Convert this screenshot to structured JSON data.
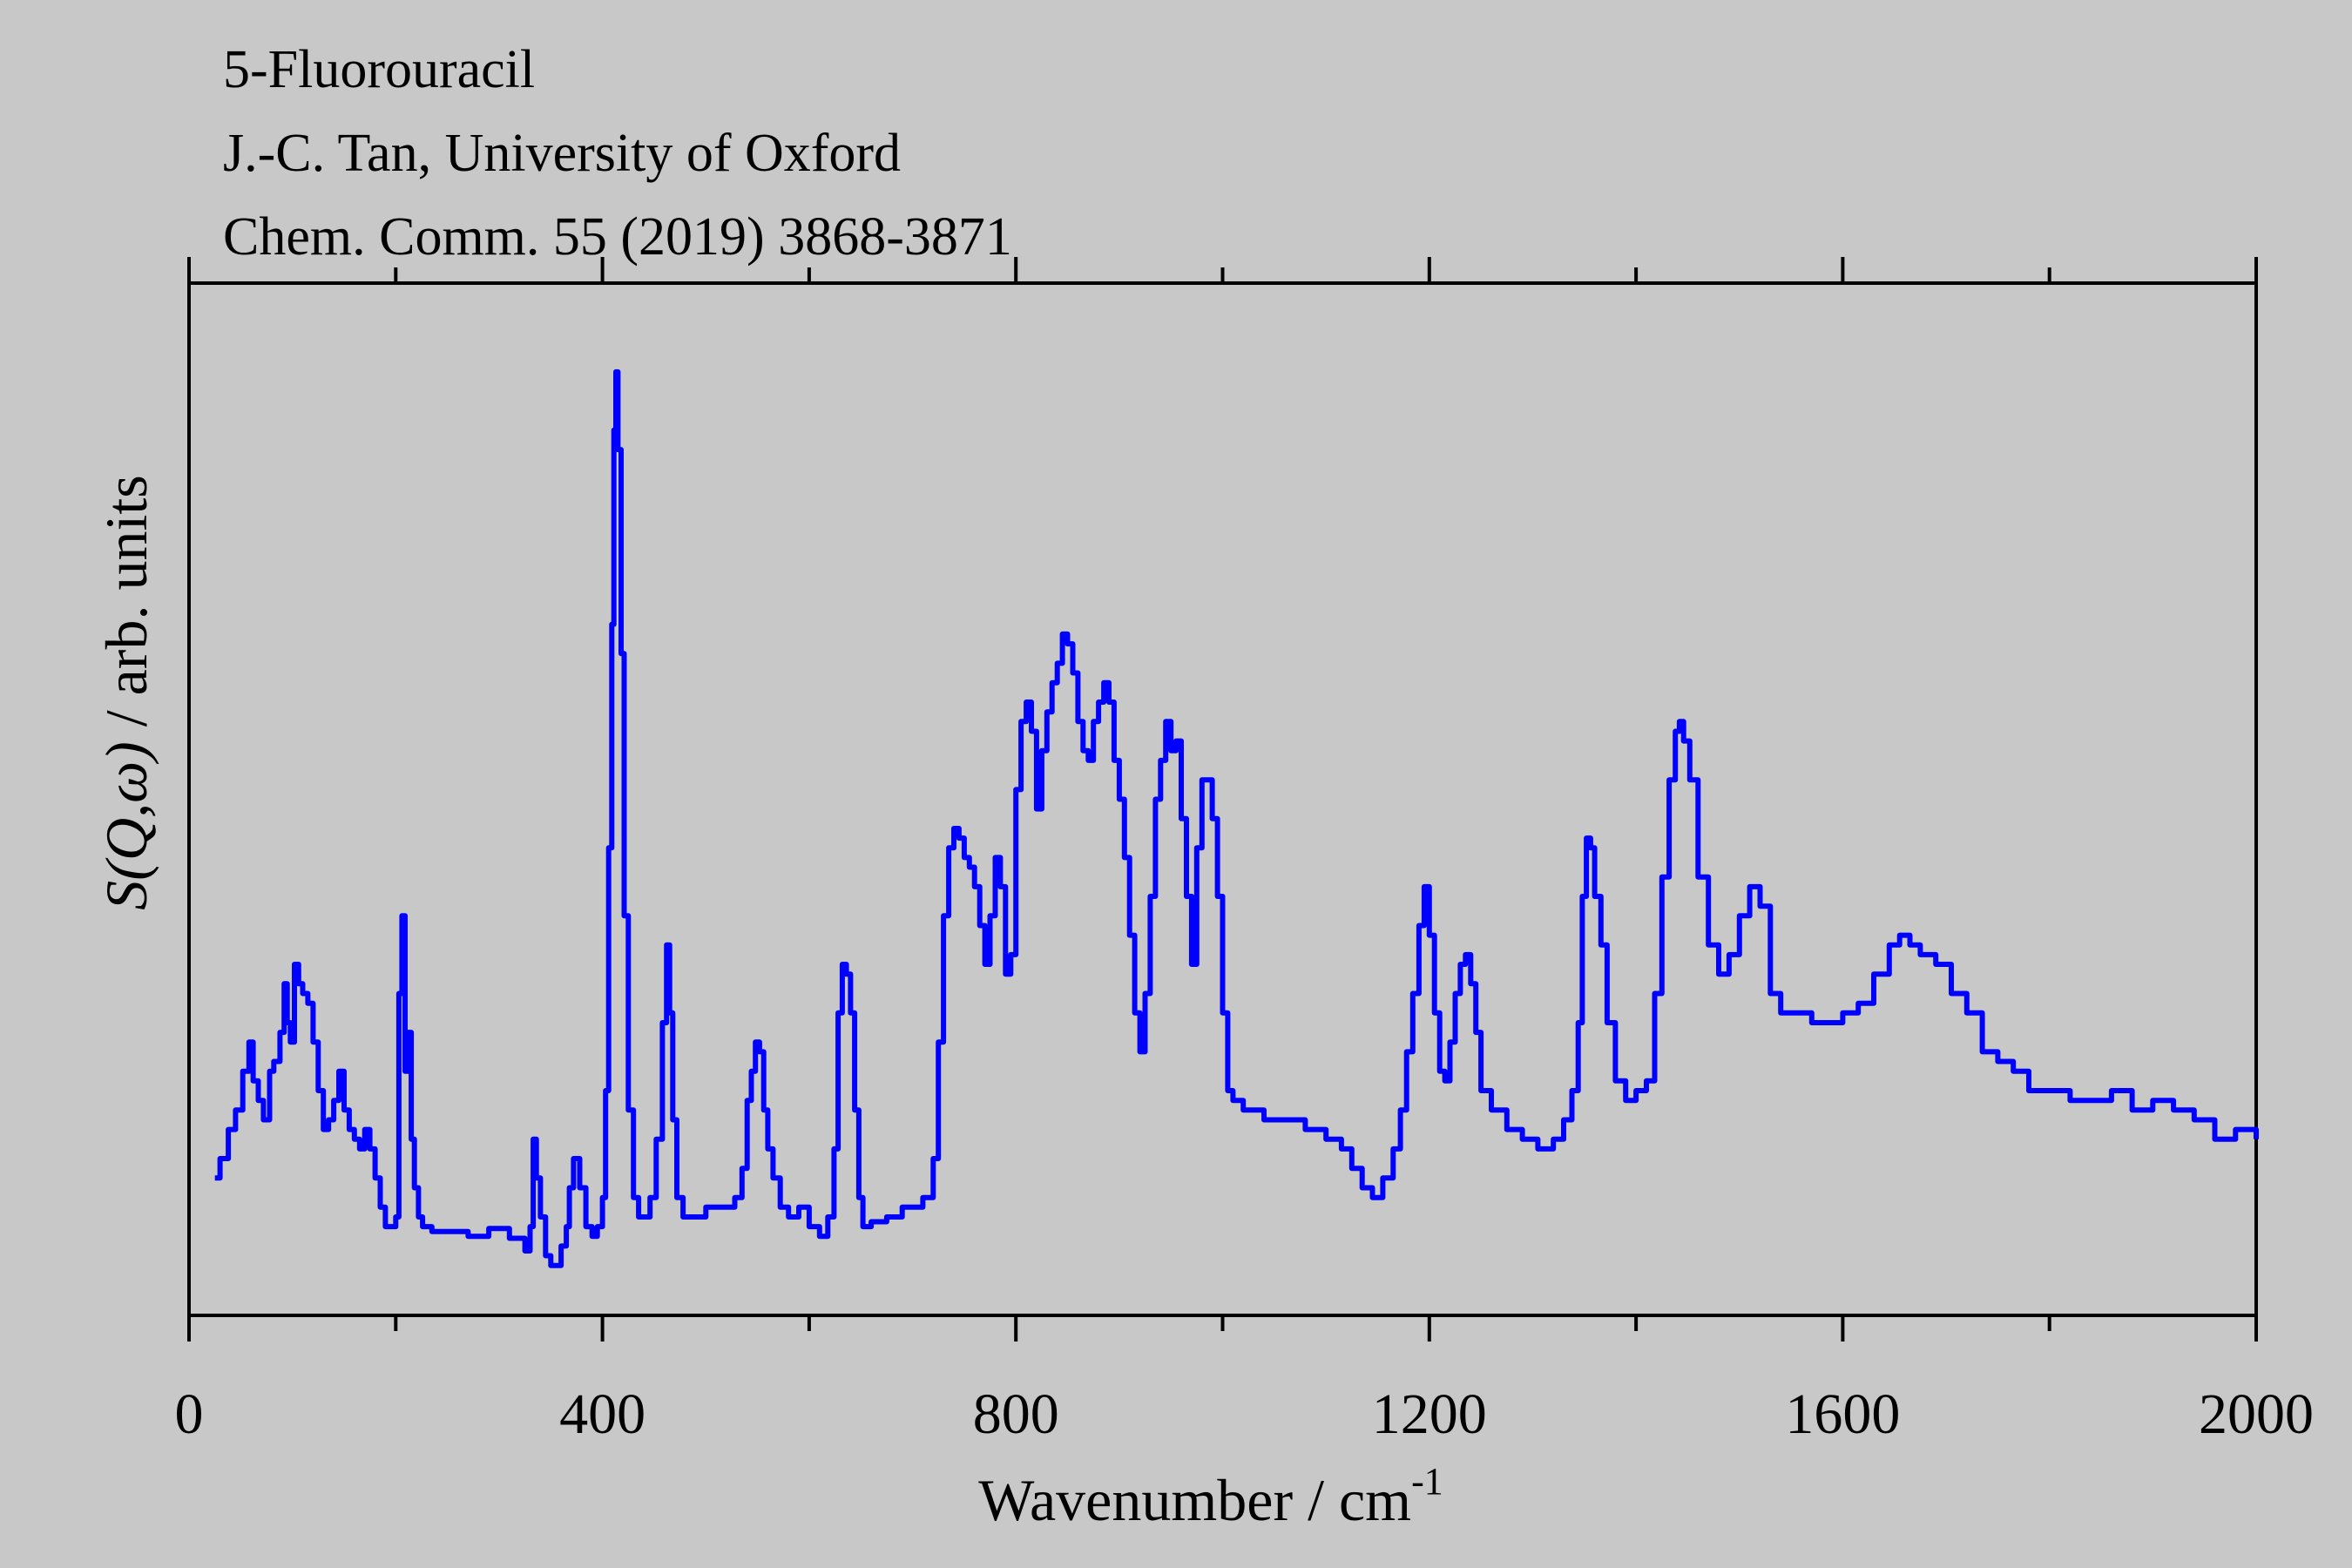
{
  "header": {
    "line1": "5-Fluorouracil",
    "line2": "J.-C. Tan, University of Oxford",
    "line3": "Chem. Comm. 55 (2019) 3868-3871"
  },
  "chart_data": {
    "type": "line",
    "title": "",
    "xlabel": "Wavenumber / cm",
    "xlabel_superscript": "-1",
    "ylabel_italic": "S(Q,ω)",
    "ylabel_rest": " / arb. units",
    "xlim": [
      0,
      2000
    ],
    "ylim": [
      0,
      100
    ],
    "x_ticks": [
      "0",
      "400",
      "800",
      "1200",
      "1600",
      "2000"
    ],
    "y_ticks_shown": false,
    "grid": false,
    "line_color": "#0000ff",
    "series": [
      {
        "x": [
          25,
          30,
          38,
          45,
          52,
          58,
          62,
          67,
          72,
          78,
          82,
          88,
          92,
          95,
          98,
          102,
          106,
          110,
          115,
          120,
          125,
          130,
          135,
          140,
          145,
          150,
          155,
          160,
          165,
          170,
          175,
          180,
          185,
          190,
          195,
          200,
          203,
          206,
          209,
          212,
          215,
          218,
          222,
          226,
          235,
          250,
          270,
          290,
          310,
          325,
          330,
          333,
          336,
          340,
          345,
          350,
          355,
          360,
          365,
          368,
          372,
          378,
          384,
          390,
          395,
          400,
          403,
          406,
          409,
          411,
          413,
          415,
          418,
          421,
          425,
          430,
          435,
          440,
          446,
          452,
          458,
          462,
          465,
          468,
          472,
          478,
          486,
          500,
          515,
          528,
          535,
          540,
          544,
          548,
          552,
          556,
          560,
          565,
          572,
          580,
          590,
          600,
          610,
          618,
          624,
          628,
          632,
          636,
          640,
          644,
          648,
          652,
          656,
          660,
          665,
          675,
          690,
          710,
          720,
          725,
          730,
          735,
          740,
          745,
          750,
          755,
          760,
          765,
          770,
          775,
          780,
          785,
          790,
          795,
          800,
          805,
          810,
          815,
          820,
          825,
          830,
          835,
          840,
          845,
          850,
          855,
          860,
          865,
          870,
          875,
          880,
          885,
          890,
          895,
          900,
          905,
          910,
          915,
          920,
          925,
          930,
          935,
          940,
          945,
          950,
          955,
          960,
          965,
          970,
          975,
          980,
          985,
          990,
          995,
          1000,
          1005,
          1010,
          1020,
          1040,
          1060,
          1080,
          1100,
          1115,
          1125,
          1135,
          1145,
          1155,
          1165,
          1172,
          1178,
          1184,
          1190,
          1195,
          1200,
          1205,
          1210,
          1215,
          1220,
          1225,
          1230,
          1235,
          1240,
          1245,
          1250,
          1260,
          1275,
          1290,
          1305,
          1320,
          1330,
          1338,
          1344,
          1348,
          1352,
          1356,
          1360,
          1366,
          1372,
          1380,
          1390,
          1400,
          1410,
          1418,
          1425,
          1432,
          1438,
          1442,
          1446,
          1452,
          1460,
          1470,
          1480,
          1490,
          1500,
          1510,
          1520,
          1530,
          1540,
          1555,
          1570,
          1585,
          1600,
          1615,
          1630,
          1645,
          1655,
          1665,
          1675,
          1690,
          1705,
          1720,
          1735,
          1750,
          1765,
          1780,
          1800,
          1820,
          1840,
          1860,
          1880,
          1900,
          1920,
          1940,
          1960,
          1980,
          2000
        ],
        "y": [
          11,
          13,
          16,
          18,
          22,
          25,
          21,
          19,
          17,
          22,
          23,
          26,
          31,
          27,
          25,
          33,
          31,
          30,
          29,
          25,
          20,
          16,
          17,
          19,
          22,
          18,
          16,
          15,
          14,
          16,
          14,
          11,
          8,
          6,
          6,
          7,
          30,
          38,
          22,
          26,
          15,
          10,
          7,
          6,
          5.5,
          5.5,
          5,
          5.8,
          4.8,
          3.5,
          6,
          15,
          11,
          7,
          3,
          2,
          2,
          4,
          6,
          10,
          13,
          10,
          6,
          5,
          6,
          9,
          20,
          45,
          68,
          88,
          94,
          86,
          65,
          38,
          18,
          9,
          7,
          7,
          9,
          15,
          27,
          35,
          28,
          17,
          9,
          7,
          7,
          8,
          8,
          9,
          12,
          19,
          22,
          25,
          24,
          18,
          14,
          11,
          8,
          7,
          8,
          6,
          5,
          7,
          14,
          28,
          33,
          32,
          28,
          18,
          9,
          6,
          6,
          6.5,
          6.5,
          7,
          8,
          9,
          13,
          25,
          38,
          45,
          47,
          46,
          44,
          43,
          41,
          37,
          33,
          38,
          44,
          41,
          32,
          34,
          51,
          58,
          60,
          57,
          49,
          55,
          59,
          62,
          64,
          67,
          66,
          63,
          58,
          55,
          54,
          58,
          60,
          62,
          60,
          54,
          50,
          44,
          36,
          28,
          24,
          30,
          40,
          50,
          54,
          58,
          55,
          56,
          48,
          40,
          33,
          45,
          52,
          52,
          48,
          40,
          28,
          20,
          19,
          18,
          17,
          17,
          16,
          15,
          14,
          12,
          10,
          9,
          11,
          14,
          18,
          24,
          30,
          37,
          41,
          36,
          28,
          22,
          21,
          25,
          30,
          33,
          34,
          31,
          26,
          20,
          18,
          16,
          15,
          14,
          15,
          17,
          20,
          27,
          40,
          46,
          45,
          40,
          35,
          27,
          21,
          19,
          20,
          21,
          30,
          42,
          52,
          57,
          58,
          56,
          52,
          42,
          35,
          32,
          34,
          38,
          41,
          39,
          30,
          28,
          28,
          27,
          27,
          28,
          29,
          32,
          35,
          36,
          35,
          34,
          33,
          30,
          28,
          24,
          23,
          22,
          20,
          20,
          19,
          19,
          20,
          18,
          19,
          18,
          17,
          15,
          16,
          15
        ]
      }
    ]
  }
}
